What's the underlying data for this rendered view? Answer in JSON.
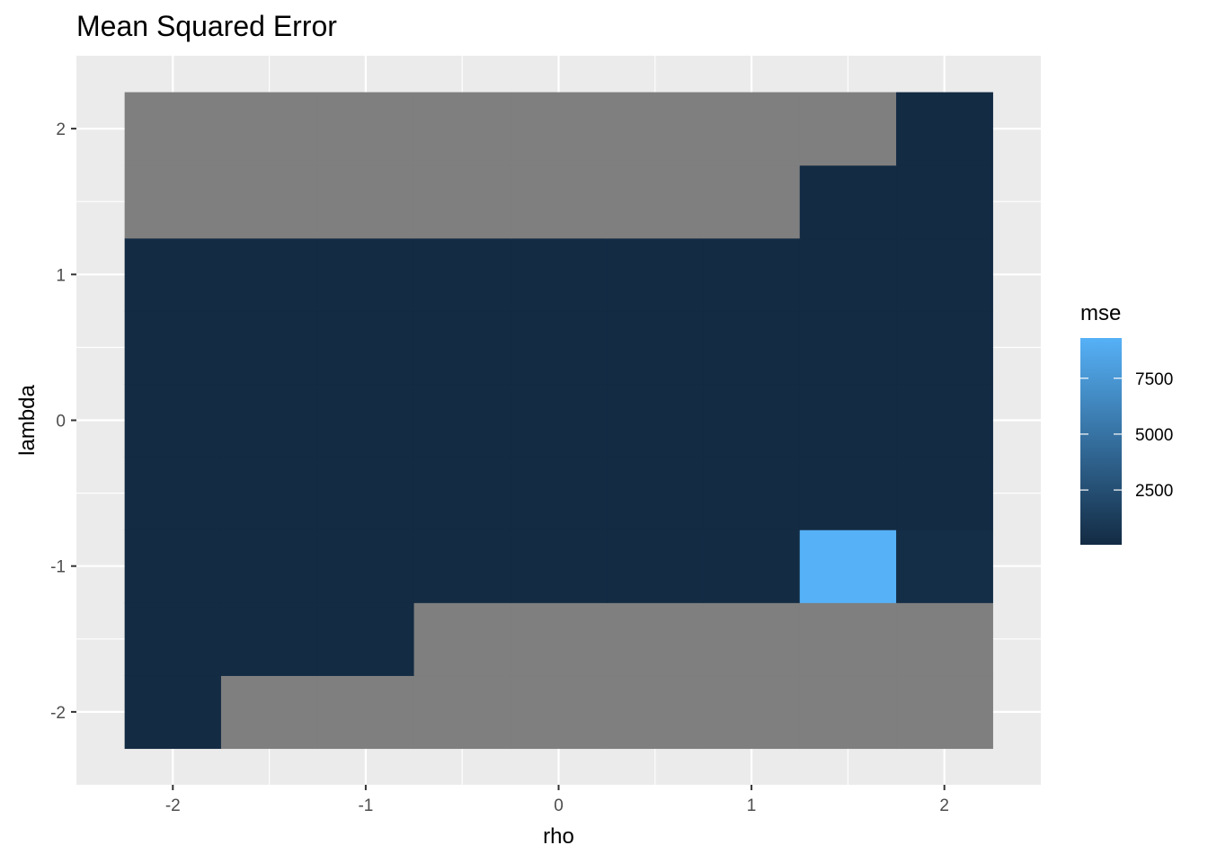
{
  "chart_data": {
    "type": "heatmap",
    "title": "Mean Squared Error",
    "xlabel": "rho",
    "ylabel": "lambda",
    "x_ticks": [
      "-2",
      "-1",
      "0",
      "1",
      "2"
    ],
    "y_ticks": [
      "-2",
      "-1",
      "0",
      "1",
      "2"
    ],
    "xlim": [
      -2.5,
      2.5
    ],
    "ylim": [
      -2.5,
      2.5
    ],
    "grid": true,
    "background": "#ebebeb",
    "na_color": "#7f7f7f",
    "low_color": "#132b43",
    "high_color": "#56b1f7",
    "legend": {
      "title": "mse",
      "position": "right",
      "range": [
        50,
        9300
      ],
      "breaks": [
        2500,
        5000,
        7500
      ],
      "labels": [
        "2500",
        "5000",
        "7500"
      ]
    },
    "x_values": [
      -2,
      -1.5,
      -1,
      -0.5,
      0,
      0.5,
      1,
      1.5,
      2
    ],
    "y_values": [
      -2,
      -1.5,
      -1,
      -0.5,
      0,
      0.5,
      1,
      1.5,
      2
    ],
    "z": [
      [
        60,
        null,
        null,
        null,
        null,
        null,
        null,
        null,
        null
      ],
      [
        60,
        60,
        60,
        null,
        null,
        null,
        null,
        null,
        null
      ],
      [
        60,
        60,
        60,
        60,
        60,
        60,
        90,
        9300,
        250
      ],
      [
        60,
        60,
        60,
        60,
        60,
        60,
        60,
        60,
        60
      ],
      [
        60,
        60,
        60,
        60,
        60,
        60,
        60,
        60,
        60
      ],
      [
        60,
        60,
        60,
        60,
        60,
        60,
        60,
        60,
        60
      ],
      [
        60,
        60,
        60,
        60,
        60,
        60,
        60,
        60,
        60
      ],
      [
        null,
        null,
        null,
        null,
        null,
        null,
        null,
        70,
        70
      ],
      [
        null,
        null,
        null,
        null,
        null,
        null,
        null,
        null,
        70
      ]
    ]
  }
}
